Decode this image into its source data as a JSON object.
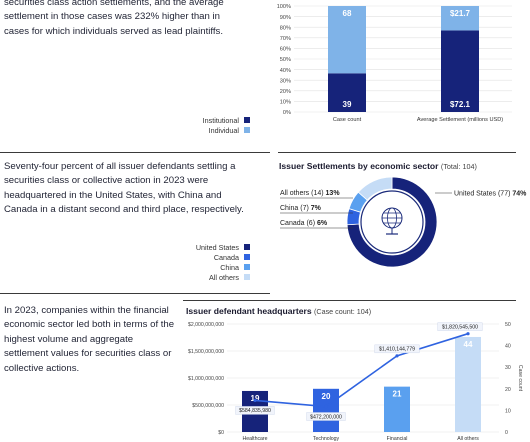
{
  "section1": {
    "text": "securities class action settlements, and the average settlement in those cases was 232% higher than in cases for which individuals served as lead plaintiffs."
  },
  "section2": {
    "text": "Seventy-four percent of all issuer defendants settling a securities class or collective action in 2023 were headquartered in the United States, with China and Canada in a distant second and third place, respectively."
  },
  "section3": {
    "text": "In 2023, companies within the financial economic sector led both in terms of the highest volume and aggregate settlement values for securities class or collective actions."
  },
  "colors": {
    "navy": "#16237a",
    "light_blue": "#7fb3e8",
    "blue": "#2f63e0",
    "mid_blue": "#5aa0ef",
    "pale_blue": "#c5dcf6"
  },
  "legend1": [
    {
      "label": "Institutional",
      "color": "#16237a"
    },
    {
      "label": "Individual",
      "color": "#7fb3e8"
    }
  ],
  "legend2": [
    {
      "label": "United States",
      "color": "#16237a"
    },
    {
      "label": "Canada",
      "color": "#2f63e0"
    },
    {
      "label": "China",
      "color": "#5aa0ef"
    },
    {
      "label": "All others",
      "color": "#c5dcf6"
    }
  ],
  "chart_data": [
    {
      "type": "bar",
      "stacked": true,
      "percent": true,
      "categories": [
        "Case count",
        "Average Settlement (millions USD)"
      ],
      "series": [
        {
          "name": "Institutional",
          "shares": [
            36.5,
            77.0
          ],
          "labels": [
            "39",
            "$72.1"
          ]
        },
        {
          "name": "Individual",
          "shares": [
            63.5,
            23.0
          ],
          "labels": [
            "68",
            "$21.7"
          ]
        }
      ],
      "yticks": [
        "0%",
        "10%",
        "20%",
        "30%",
        "40%",
        "50%",
        "60%",
        "70%",
        "80%",
        "90%",
        "100%"
      ],
      "ylim": [
        0,
        100
      ]
    },
    {
      "type": "pie",
      "donut": true,
      "title": "Issuer Settlements by economic sector",
      "subtitle": "(Total: 104)",
      "slices": [
        {
          "name": "United States",
          "count": 77,
          "pct": 74,
          "label": "United States (77)",
          "pct_label": "74%"
        },
        {
          "name": "Canada",
          "count": 6,
          "pct": 6,
          "label": "Canada (6)",
          "pct_label": "6%"
        },
        {
          "name": "China",
          "count": 7,
          "pct": 7,
          "label": "China (7)",
          "pct_label": "7%"
        },
        {
          "name": "All others",
          "count": 14,
          "pct": 13,
          "label": "All others (14)",
          "pct_label": "13%"
        }
      ]
    },
    {
      "type": "bar",
      "title": "Issuer defendant headquarters",
      "subtitle": "(Case count: 104)",
      "categories": [
        "Healthcare",
        "Technology",
        "Financial",
        "All others"
      ],
      "bars": [
        19,
        20,
        21,
        44
      ],
      "line": [
        584835980,
        472200000,
        1410144779,
        1820545500
      ],
      "line_labels": [
        "$584,835,980",
        "$472,200,000",
        "$1,410,144,779",
        "$1,820,545,500"
      ],
      "y_left_ticks": [
        "$0",
        "$500,000,000",
        "$1,000,000,000",
        "$1,500,000,000",
        "$2,000,000,000"
      ],
      "y_left_lim": [
        0,
        2000000000
      ],
      "y_right_ticks": [
        "0",
        "10",
        "20",
        "30",
        "40",
        "50"
      ],
      "y_right_lim": [
        0,
        50
      ],
      "y_right_label": "Case count"
    }
  ]
}
